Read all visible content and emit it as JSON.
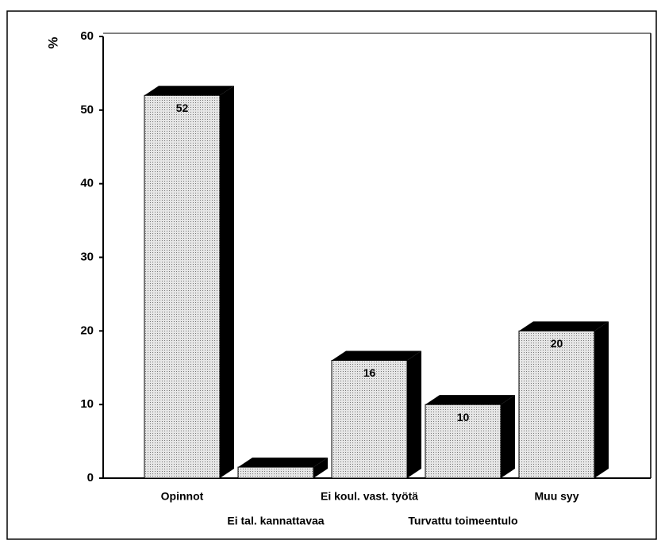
{
  "chart_data": {
    "type": "bar3d",
    "y_label": "%",
    "categories": [
      "Opinnot",
      "Ei tal. kannattavaa",
      "Ei koul. vast. työtä",
      "Turvattu toimeentulo",
      "Muu syy"
    ],
    "values": [
      52,
      1.5,
      16,
      10,
      20
    ],
    "value_labels": [
      "52",
      null,
      "16",
      "10",
      "20"
    ],
    "color": "#d8d8d8",
    "side_color": "#000000",
    "ylim": [
      0,
      60
    ],
    "yticks": [
      0,
      10,
      20,
      30,
      40,
      50,
      60
    ],
    "grid": false
  }
}
